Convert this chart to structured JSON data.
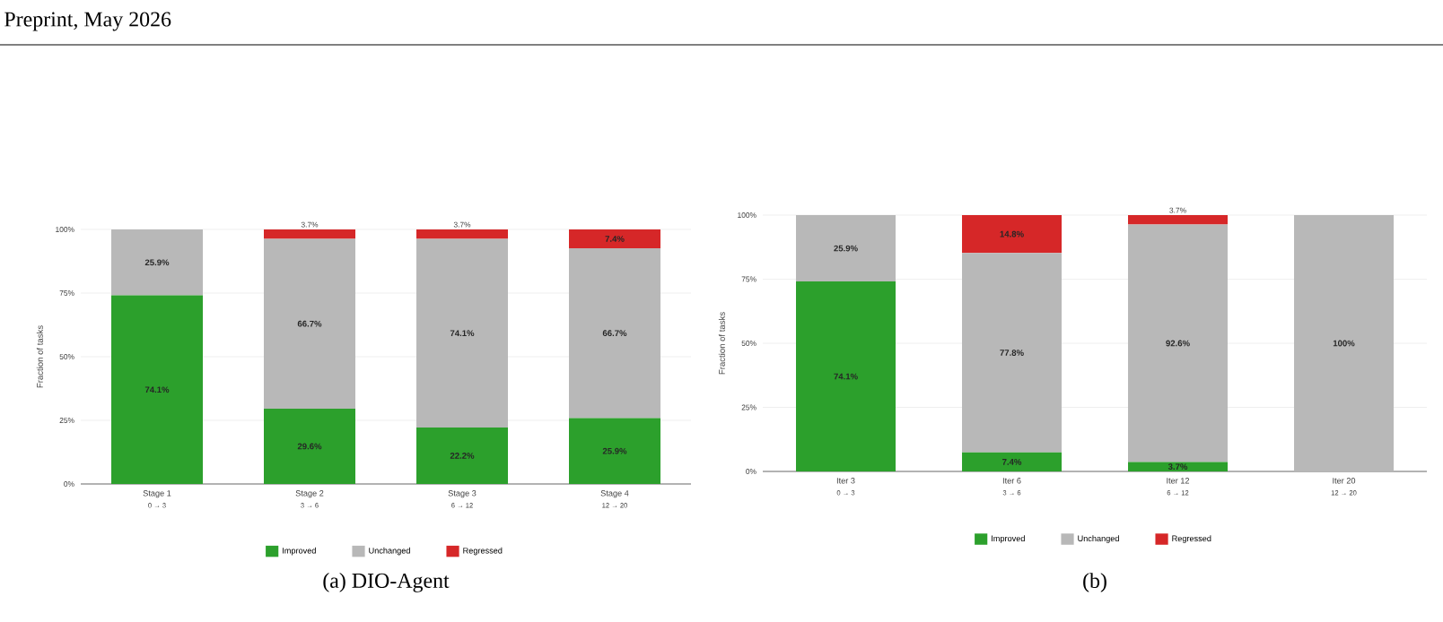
{
  "chart_data": [
    {
      "type": "bar",
      "title": "(a) DIO-Agent",
      "ylabel": "Fraction of tasks",
      "stacked": true,
      "legend": "bottom",
      "grid": "y",
      "categories": [
        "Stage 1",
        "Stage 2",
        "Stage 3",
        "Stage 4"
      ],
      "annotations": [
        "0 → 3",
        "3 → 6",
        "6 → 12",
        "12 → 20",
        "Preprint, May 2026"
      ],
      "ylim": [
        0,
        100
      ],
      "yticks": [
        {
          "value": 0,
          "label": "0%"
        },
        {
          "value": 25,
          "label": "25%"
        },
        {
          "value": 50,
          "label": "50%"
        },
        {
          "value": 75,
          "label": "75%"
        },
        {
          "value": 100,
          "label": "100%"
        }
      ],
      "series": [
        {
          "name": "Improved",
          "color": "#2ca02c",
          "values": [
            74.1,
            29.6,
            22.2,
            25.9
          ],
          "value_labels": [
            "74.1%",
            "29.6%",
            "22.2%",
            "25.9%"
          ]
        },
        {
          "name": "Unchanged",
          "color": "#b8b8b8",
          "values": [
            25.9,
            66.7,
            74.1,
            66.7
          ],
          "value_labels": [
            "25.9%",
            "66.7%",
            "74.1%",
            "66.7%"
          ]
        },
        {
          "name": "Regressed",
          "color": "#d62728",
          "values": [
            0,
            3.7,
            3.7,
            7.4
          ],
          "value_labels": [
            null,
            "3.7%",
            "3.7%",
            "7.4%"
          ]
        }
      ]
    },
    {
      "type": "bar",
      "title": "(b)",
      "ylabel": "Fraction of tasks",
      "stacked": true,
      "legend": "bottom",
      "grid": "y",
      "categories": [
        "Iter 3",
        "Iter 6",
        "Iter 12",
        "Iter 20"
      ],
      "annotations": [
        "0 → 3",
        "3 → 6",
        "6 → 12",
        "12 → 20"
      ],
      "ylim": [
        0,
        100
      ],
      "yticks": [
        {
          "value": 0,
          "label": "0%"
        },
        {
          "value": 25,
          "label": "25%"
        },
        {
          "value": 50,
          "label": "50%"
        },
        {
          "value": 75,
          "label": "75%"
        },
        {
          "value": 100,
          "label": "100%"
        }
      ],
      "series": [
        {
          "name": "Improved",
          "color": "#2ca02c",
          "values": [
            74.1,
            7.4,
            3.7,
            0
          ],
          "value_labels": [
            "74.1%",
            "7.4%",
            "3.7%",
            null
          ]
        },
        {
          "name": "Unchanged",
          "color": "#b8b8b8",
          "values": [
            25.9,
            77.8,
            92.6,
            100
          ],
          "value_labels": [
            "25.9%",
            "77.8%",
            "92.6%",
            "100%"
          ]
        },
        {
          "name": "Regressed",
          "color": "#d62728",
          "values": [
            0,
            14.8,
            3.7,
            0
          ],
          "value_labels": [
            null,
            "14.8%",
            "3.7%",
            null
          ]
        }
      ]
    }
  ]
}
